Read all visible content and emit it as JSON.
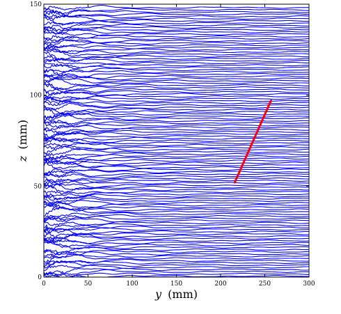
{
  "chart_data": {
    "type": "line",
    "xlabel_var": "y",
    "xlabel_unit": "(mm)",
    "ylabel_var": "z",
    "ylabel_unit": "(mm)",
    "xlim": [
      0,
      300
    ],
    "ylim": [
      0,
      150
    ],
    "x_ticks": [
      0,
      50,
      100,
      150,
      200,
      250,
      300
    ],
    "y_ticks": [
      0,
      50,
      100,
      150
    ],
    "grid": false,
    "series": [
      {
        "line_count": 122,
        "z_first": 0.5,
        "z_step": 1.22,
        "color": "#0000ff"
      },
      {
        "x": [
          216,
          257
        ],
        "y": [
          52,
          97
        ],
        "color": "#ff0000"
      }
    ]
  }
}
